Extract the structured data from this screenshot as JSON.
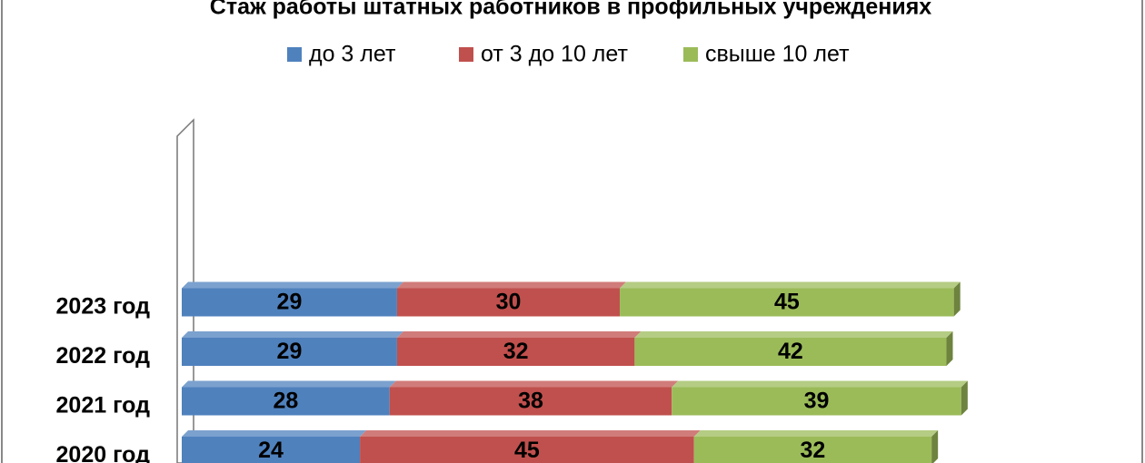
{
  "chart_data": {
    "type": "bar",
    "orientation": "horizontal",
    "stacked": true,
    "title": "Стаж работы  штатных работников  в профильных учреждениях",
    "categories": [
      "2020 год",
      "2021 год",
      "2022 год",
      "2023 год"
    ],
    "series": [
      {
        "name": "до  3 лет",
        "color": "#4f81bd",
        "values": [
          24,
          28,
          29,
          29
        ]
      },
      {
        "name": "от 3 до 10 лет",
        "color": "#c0504d",
        "values": [
          45,
          38,
          32,
          30
        ]
      },
      {
        "name": "свыше 10 лет",
        "color": "#9bbb59",
        "values": [
          32,
          39,
          42,
          45
        ]
      }
    ],
    "legend": "top"
  }
}
